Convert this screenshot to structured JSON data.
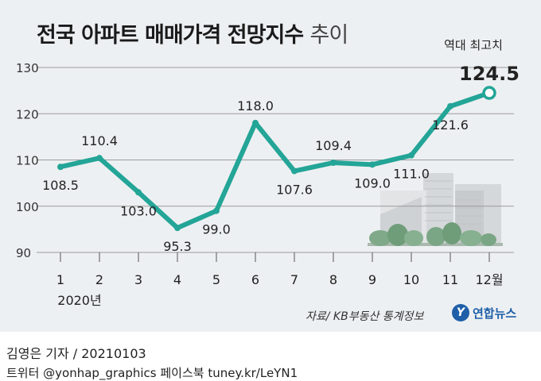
{
  "title": "전국 아파트 매매가격 전망지수",
  "title_suffix": "추이",
  "source": "자료/ KB부동산 통계정보",
  "logo_text": "연합뉴스",
  "byline": "김영은 기자 / 20210103",
  "social": "트위터 @yonhap_graphics  페이스북 tuney.kr/LeYN1",
  "colors": {
    "line": "#23a597",
    "background": "#edf0f2",
    "axis": "#444444"
  },
  "chart_data": {
    "type": "line",
    "x": [
      "1",
      "2",
      "3",
      "4",
      "5",
      "6",
      "7",
      "8",
      "9",
      "10",
      "11",
      "12월"
    ],
    "x_year_label": "2020년",
    "values": [
      108.5,
      110.4,
      103.0,
      95.3,
      99.0,
      118.0,
      107.6,
      109.4,
      109.0,
      111.0,
      121.6,
      124.5
    ],
    "value_labels": [
      "108.5",
      "110.4",
      "103.0",
      "95.3",
      "99.0",
      "118.0",
      "107.6",
      "109.4",
      "109.0",
      "111.0",
      "121.6",
      "124.5"
    ],
    "ylim": [
      90,
      130
    ],
    "yticks": [
      "90",
      "100",
      "110",
      "120",
      "130"
    ],
    "grid": true,
    "highlight_label": "역대 최고치",
    "highlight_index": 11
  }
}
